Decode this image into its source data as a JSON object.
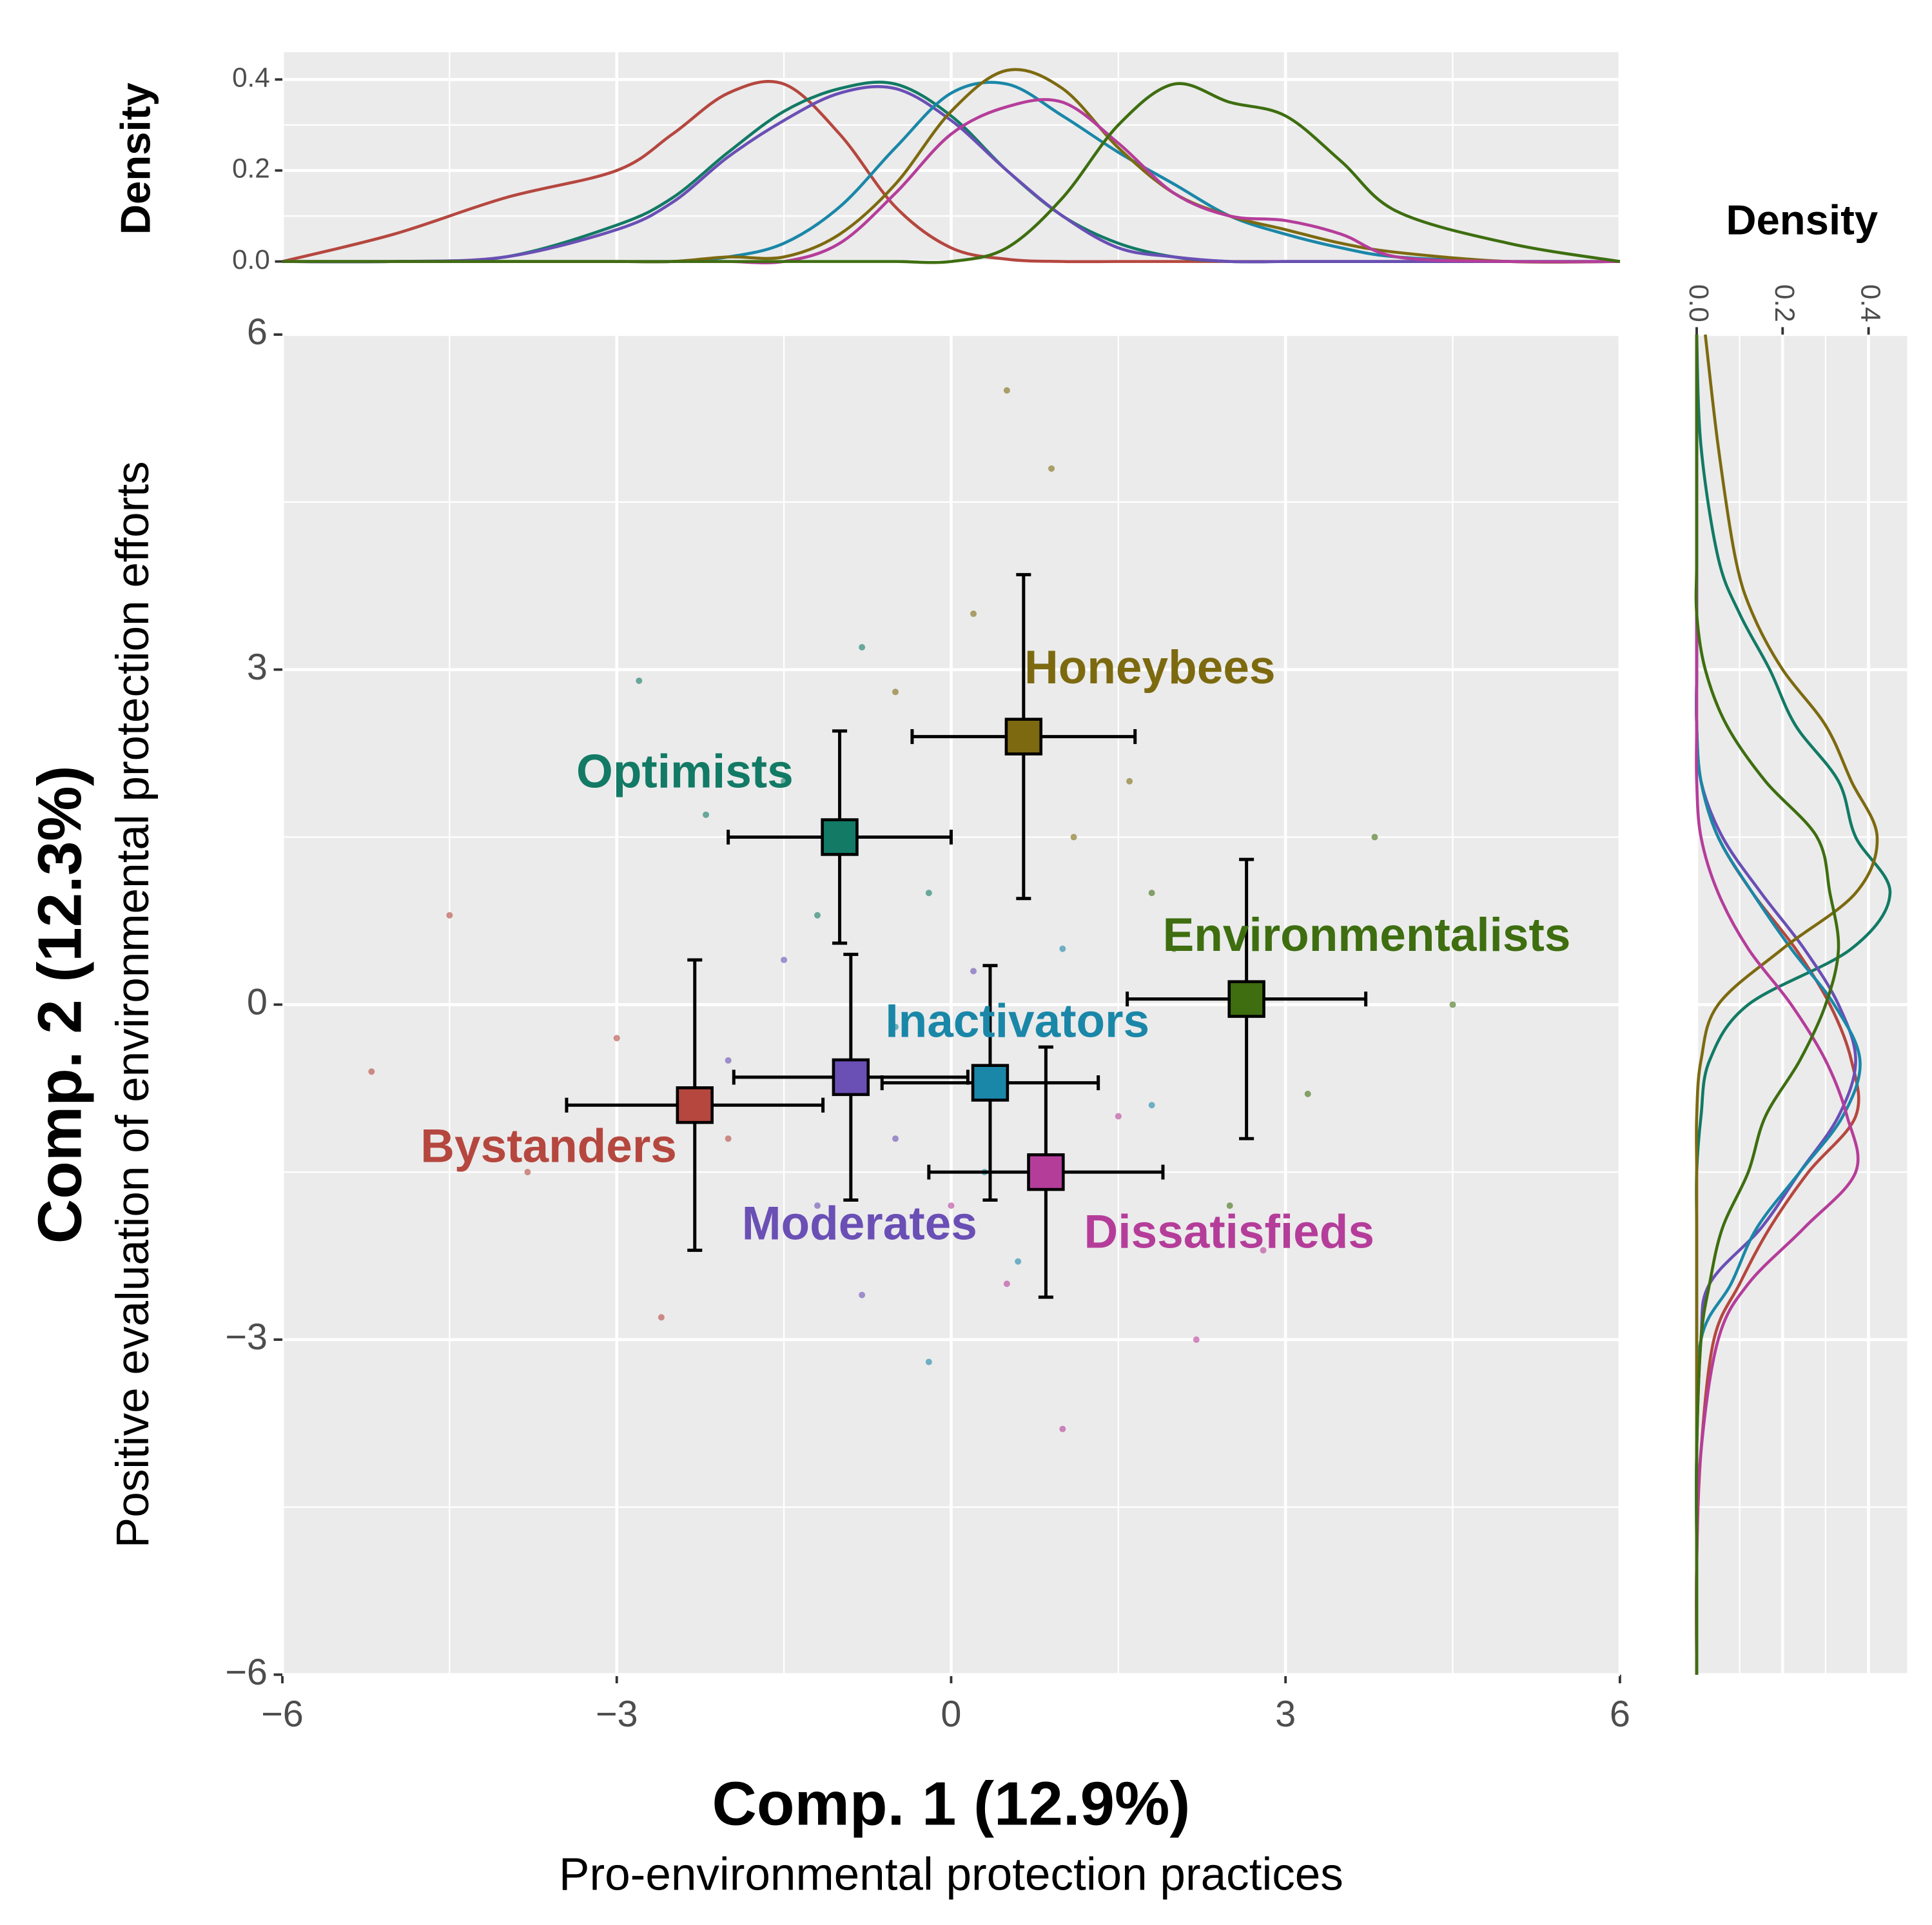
{
  "chart_data": [
    {
      "type": "scatter",
      "x_title": "Comp. 1 (12.9%)",
      "x_subtitle": "Pro-environmental protection practices",
      "y_title": "Comp. 2 (12.3%)",
      "y_subtitle": "Positive evaluation of environmental protection efforts",
      "xlim": [
        -6,
        6
      ],
      "ylim": [
        -6,
        6
      ],
      "xticks": [
        {
          "value": -6,
          "label": "−6"
        },
        {
          "value": -3,
          "label": "−3"
        },
        0,
        3,
        6
      ],
      "yticks": [
        {
          "value": -6,
          "label": "−6"
        },
        {
          "value": -3,
          "label": "−3"
        },
        0,
        3,
        6
      ],
      "minor_grid": [
        -4.5,
        -1.5,
        1.5,
        4.5
      ],
      "grid": true,
      "series": [
        {
          "name": "Bystanders",
          "color": "#b5473f",
          "mean_x": -2.3,
          "mean_y": -0.9,
          "sd_x": 1.15,
          "sd_y": 1.3,
          "x": [
            -4.5,
            -3.8,
            -3.0,
            -2.6,
            -2.0,
            -5.2
          ],
          "y": [
            0.8,
            -1.5,
            -0.3,
            -2.8,
            -1.2,
            -0.6
          ]
        },
        {
          "name": "Optimists",
          "color": "#127a65",
          "mean_x": -1.0,
          "mean_y": 1.5,
          "sd_x": 1.0,
          "sd_y": 0.95,
          "x": [
            -2.8,
            -1.5,
            -0.8,
            -0.2,
            -1.2,
            -2.2
          ],
          "y": [
            2.9,
            2.0,
            3.2,
            1.0,
            0.8,
            1.7
          ]
        },
        {
          "name": "Moderates",
          "color": "#6a4fb5",
          "mean_x": -0.9,
          "mean_y": -0.65,
          "sd_x": 1.05,
          "sd_y": 1.1,
          "x": [
            -2.0,
            -1.2,
            -0.5,
            0.2,
            -1.5,
            -0.8
          ],
          "y": [
            -0.5,
            -1.8,
            -1.2,
            0.3,
            0.4,
            -2.6
          ]
        },
        {
          "name": "Inactivators",
          "color": "#1a87a8",
          "mean_x": 0.35,
          "mean_y": -0.7,
          "sd_x": 0.97,
          "sd_y": 1.05,
          "x": [
            -0.5,
            0.3,
            1.0,
            1.8,
            0.6,
            -0.2
          ],
          "y": [
            -0.2,
            -1.5,
            0.5,
            -0.9,
            -2.3,
            -3.2
          ]
        },
        {
          "name": "Honeybees",
          "color": "#7d6a10",
          "mean_x": 0.65,
          "mean_y": 2.4,
          "sd_x": 1.0,
          "sd_y": 1.45,
          "x": [
            0.2,
            0.9,
            1.6,
            -0.5,
            1.1,
            0.5
          ],
          "y": [
            3.5,
            4.8,
            2.0,
            2.8,
            1.5,
            5.5
          ]
        },
        {
          "name": "Dissatisfieds",
          "color": "#b53d9a",
          "mean_x": 0.85,
          "mean_y": -1.5,
          "sd_x": 1.05,
          "sd_y": 1.12,
          "x": [
            0.5,
            1.5,
            2.2,
            0.0,
            1.0,
            2.8
          ],
          "y": [
            -2.5,
            -1.0,
            -3.0,
            -1.8,
            -3.8,
            -2.2
          ]
        },
        {
          "name": "Environmentalists",
          "color": "#3e6e10",
          "mean_x": 2.65,
          "mean_y": 0.05,
          "sd_x": 1.07,
          "sd_y": 1.25,
          "x": [
            2.0,
            3.2,
            3.8,
            2.5,
            4.5,
            1.8
          ],
          "y": [
            0.5,
            -0.8,
            1.5,
            -1.8,
            0.0,
            1.0
          ]
        }
      ]
    },
    {
      "type": "density",
      "orientation": "top",
      "axis_label": "Density",
      "ylim": [
        0,
        0.46
      ],
      "yticks": [
        {
          "value": 0,
          "label": "0.0"
        },
        0.2,
        0.4
      ],
      "minor_grid": [
        0.1,
        0.3
      ],
      "grid": [
        -6,
        -5,
        -4,
        -3,
        -2.5,
        -2,
        -1.5,
        -1,
        -0.5,
        0,
        0.5,
        1,
        1.5,
        2,
        2.5,
        3,
        3.5,
        4,
        5,
        6
      ],
      "series": [
        {
          "color": "#b5473f",
          "values": [
            0,
            0.06,
            0.14,
            0.2,
            0.28,
            0.37,
            0.39,
            0.28,
            0.12,
            0.03,
            0.005,
            0,
            0,
            0,
            0,
            0,
            0,
            0,
            0,
            0
          ]
        },
        {
          "color": "#127a65",
          "values": [
            0,
            0,
            0.01,
            0.08,
            0.14,
            0.24,
            0.33,
            0.38,
            0.39,
            0.32,
            0.2,
            0.1,
            0.04,
            0.01,
            0,
            0,
            0,
            0,
            0,
            0
          ]
        },
        {
          "color": "#6a4fb5",
          "values": [
            0,
            0,
            0.01,
            0.07,
            0.13,
            0.23,
            0.31,
            0.37,
            0.38,
            0.31,
            0.2,
            0.1,
            0.03,
            0.01,
            0,
            0,
            0,
            0,
            0,
            0
          ]
        },
        {
          "color": "#1a87a8",
          "values": [
            0,
            0,
            0,
            0,
            0,
            0.01,
            0.04,
            0.12,
            0.25,
            0.37,
            0.39,
            0.32,
            0.24,
            0.17,
            0.1,
            0.06,
            0.03,
            0.01,
            0,
            0
          ]
        },
        {
          "color": "#7d6a10",
          "values": [
            0,
            0,
            0,
            0,
            0,
            0.01,
            0.01,
            0.06,
            0.17,
            0.33,
            0.42,
            0.38,
            0.25,
            0.15,
            0.1,
            0.07,
            0.04,
            0.02,
            0,
            0
          ]
        },
        {
          "color": "#b53d9a",
          "values": [
            0,
            0,
            0,
            0,
            0,
            0,
            0,
            0.04,
            0.15,
            0.28,
            0.34,
            0.35,
            0.26,
            0.15,
            0.1,
            0.09,
            0.06,
            0.01,
            0,
            0
          ]
        },
        {
          "color": "#3e6e10",
          "values": [
            0,
            0,
            0,
            0,
            0,
            0,
            0,
            0,
            0,
            0,
            0.03,
            0.14,
            0.3,
            0.39,
            0.35,
            0.32,
            0.22,
            0.11,
            0.04,
            0
          ]
        }
      ]
    },
    {
      "type": "density",
      "orientation": "right",
      "axis_label": "Density",
      "xlim": [
        0,
        0.49
      ],
      "xticks": [
        {
          "value": 0,
          "label": "0.0"
        },
        0.2,
        0.4
      ],
      "minor_grid": [
        0.1,
        0.3
      ],
      "grid": [
        -6,
        -5,
        -4,
        -3,
        -2.5,
        -2,
        -1.5,
        -1,
        -0.5,
        0,
        0.5,
        1,
        1.5,
        2,
        2.5,
        3,
        3.5,
        4,
        5,
        6
      ],
      "series": [
        {
          "color": "#b5473f",
          "values": [
            0,
            0,
            0.01,
            0.04,
            0.1,
            0.17,
            0.26,
            0.37,
            0.36,
            0.31,
            0.23,
            0.13,
            0.05,
            0.01,
            0,
            0,
            0,
            0,
            0,
            0
          ]
        },
        {
          "color": "#127a65",
          "values": [
            0,
            0,
            0,
            0,
            0,
            0,
            0,
            0.01,
            0.03,
            0.12,
            0.36,
            0.45,
            0.37,
            0.33,
            0.23,
            0.17,
            0.1,
            0.05,
            0.01,
            0
          ]
        },
        {
          "color": "#6a4fb5",
          "values": [
            0,
            0,
            0,
            0.01,
            0.03,
            0.15,
            0.24,
            0.33,
            0.37,
            0.33,
            0.25,
            0.15,
            0.06,
            0.01,
            0,
            0,
            0,
            0,
            0,
            0
          ]
        },
        {
          "color": "#1a87a8",
          "values": [
            0,
            0,
            0,
            0.01,
            0.08,
            0.14,
            0.24,
            0.34,
            0.38,
            0.32,
            0.22,
            0.13,
            0.05,
            0.01,
            0,
            0,
            0,
            0,
            0,
            0
          ]
        },
        {
          "color": "#7d6a10",
          "values": [
            0,
            0,
            0,
            0,
            0,
            0,
            0,
            0,
            0.01,
            0.05,
            0.2,
            0.37,
            0.42,
            0.36,
            0.3,
            0.2,
            0.13,
            0.09,
            0.05,
            0.02
          ]
        },
        {
          "color": "#b53d9a",
          "values": [
            0,
            0,
            0.01,
            0.05,
            0.12,
            0.25,
            0.37,
            0.35,
            0.3,
            0.22,
            0.12,
            0.05,
            0.01,
            0,
            0,
            0,
            0,
            0,
            0,
            0
          ]
        },
        {
          "color": "#3e6e10",
          "values": [
            0,
            0,
            0,
            0.01,
            0.03,
            0.06,
            0.12,
            0.16,
            0.24,
            0.3,
            0.33,
            0.31,
            0.28,
            0.16,
            0.07,
            0.02,
            0,
            0,
            0,
            0
          ]
        }
      ]
    }
  ]
}
